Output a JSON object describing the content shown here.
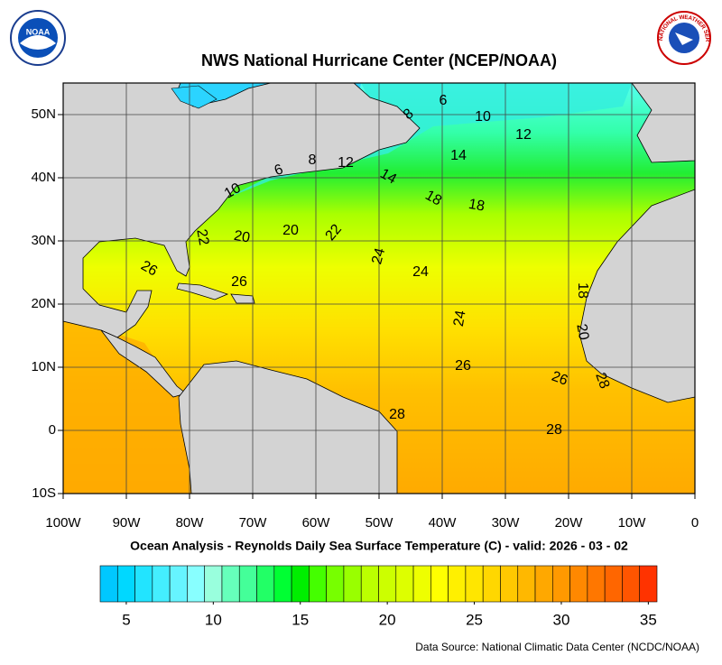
{
  "title": "NWS National Hurricane Center (NCEP/NOAA)",
  "subtitle": "Ocean Analysis - Reynolds Daily Sea Surface Temperature (C) - valid: 2026 - 03 - 02",
  "source": "Data Source: National Climatic Data Center (NCDC/NOAA)",
  "logos": {
    "left": "NOAA",
    "right": "NATIONAL WEATHER SERVICE"
  },
  "map": {
    "xlim": [
      -100,
      0
    ],
    "ylim": [
      -10,
      55
    ],
    "xticks": [
      {
        "value": -100,
        "label": "100W"
      },
      {
        "value": -90,
        "label": "90W"
      },
      {
        "value": -80,
        "label": "80W"
      },
      {
        "value": -70,
        "label": "70W"
      },
      {
        "value": -60,
        "label": "60W"
      },
      {
        "value": -50,
        "label": "50W"
      },
      {
        "value": -40,
        "label": "40W"
      },
      {
        "value": -30,
        "label": "30W"
      },
      {
        "value": -20,
        "label": "20W"
      },
      {
        "value": -10,
        "label": "10W"
      },
      0
    ],
    "yticks": [
      {
        "value": -10,
        "label": "10S"
      },
      0,
      {
        "value": 10,
        "label": "10N"
      },
      {
        "value": 20,
        "label": "20N"
      },
      {
        "value": 30,
        "label": "30N"
      },
      {
        "value": 40,
        "label": "40N"
      },
      {
        "value": 50,
        "label": "50N"
      }
    ],
    "grid": true,
    "contour_labels": [
      6,
      8,
      10,
      12,
      14,
      12,
      8,
      6,
      14,
      10,
      18,
      18,
      22,
      20,
      20,
      22,
      24,
      24,
      26,
      26,
      18,
      24,
      20,
      26,
      26,
      28,
      28,
      28
    ]
  },
  "colorbar": {
    "lim": [
      4,
      36
    ],
    "ticks": [
      5,
      10,
      15,
      20,
      25,
      30,
      35
    ],
    "colors": [
      "#00c8ff",
      "#00d8ff",
      "#22e4ff",
      "#44eeff",
      "#66f4ff",
      "#88ffff",
      "#99ffdd",
      "#66ffbb",
      "#44ff99",
      "#22ff66",
      "#00ff33",
      "#00ee00",
      "#44ff00",
      "#77ff00",
      "#99ff00",
      "#bbff00",
      "#ccff00",
      "#ddff00",
      "#eeff00",
      "#ffff00",
      "#fff000",
      "#ffe600",
      "#ffd700",
      "#ffc800",
      "#ffb800",
      "#ffa800",
      "#ff9900",
      "#ff8800",
      "#ff7700",
      "#ff6600",
      "#ff5500",
      "#ff3300"
    ]
  }
}
